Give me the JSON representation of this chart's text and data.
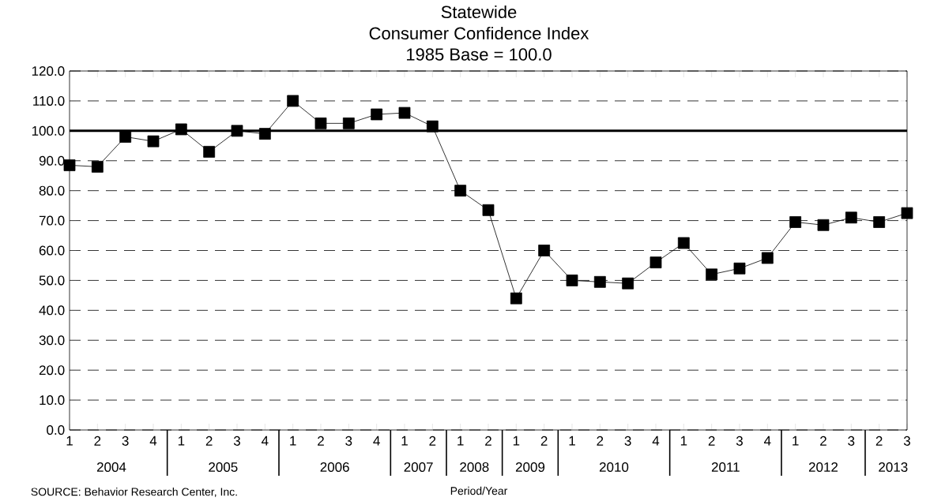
{
  "chart_data": {
    "type": "line",
    "title": "Statewide",
    "subtitle": "Consumer Confidence Index",
    "annotations": [
      "1985 Base = 100.0",
      "2004",
      "2005",
      "2006",
      "2007",
      "2008",
      "2009",
      "2010",
      "2011",
      "2012",
      "2013",
      "SOURCE: Behavior Research Center, Inc."
    ],
    "xlabel": "Period/Year",
    "categories": [
      "1",
      "2",
      "3",
      "4",
      "1",
      "2",
      "3",
      "4",
      "1",
      "2",
      "3",
      "4",
      "1",
      "2",
      "1",
      "2",
      "1",
      "2",
      "1",
      "2",
      "3",
      "4",
      "1",
      "2",
      "3",
      "4",
      "1",
      "2",
      "3",
      "2",
      "3"
    ],
    "series": [
      {
        "color": "#000000",
        "values": [
          88.5,
          88,
          98,
          96.5,
          100.5,
          93,
          100,
          99,
          110,
          102.5,
          102.5,
          105.5,
          106,
          101.5,
          80,
          73.5,
          44,
          60,
          50,
          49.5,
          49,
          56,
          62.5,
          52,
          54,
          57.5,
          69.5,
          68.5,
          71,
          69.5,
          72.5
        ]
      }
    ],
    "ylim": [
      0,
      120
    ],
    "yticks": [
      {
        "value": 0,
        "label": "0.0"
      },
      {
        "value": 10,
        "label": "10.0"
      },
      {
        "value": 20,
        "label": "20.0"
      },
      {
        "value": 30,
        "label": "30.0"
      },
      {
        "value": 40,
        "label": "40.0"
      },
      {
        "value": 50,
        "label": "50.0"
      },
      {
        "value": 60,
        "label": "60.0"
      },
      {
        "value": 70,
        "label": "70.0"
      },
      {
        "value": 80,
        "label": "80.0"
      },
      {
        "value": 90,
        "label": "90.0"
      },
      {
        "value": 100,
        "label": "100.0"
      },
      {
        "value": 110,
        "label": "110.0"
      },
      {
        "value": 120,
        "label": "120.0"
      }
    ],
    "grid": "y",
    "marker": "square",
    "line_style": "solid",
    "ref_lines": [
      {
        "axis": "y",
        "value": 100,
        "color": "#000000"
      }
    ]
  }
}
